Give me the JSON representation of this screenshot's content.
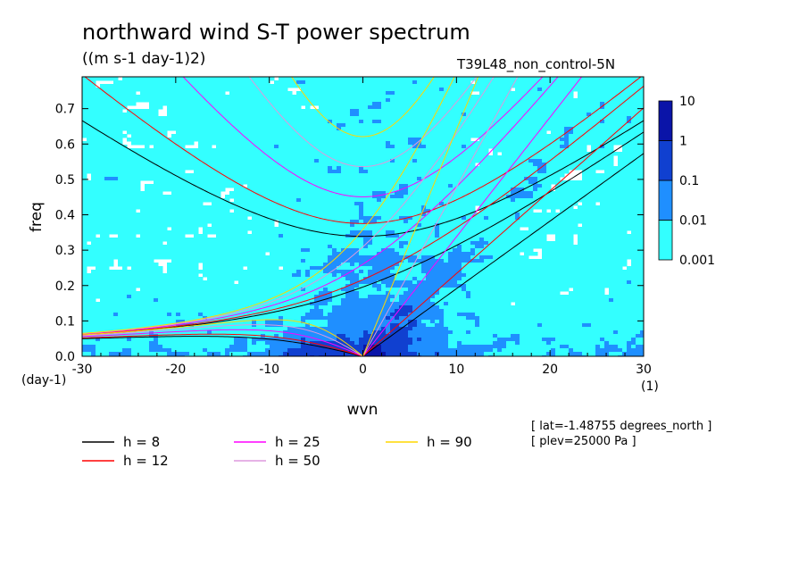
{
  "chart_data": {
    "type": "heatmap",
    "title": "northward wind S-T power spectrum",
    "units": "((m s-1 day-1)2)",
    "dataset": "T39L48_non_control-5N",
    "xlabel": "wvn",
    "ylabel": "freq",
    "x_unit": "(1)",
    "y_unit": "(day-1)",
    "xlim": [
      -30,
      30
    ],
    "ylim": [
      0,
      0.79
    ],
    "x_ticks": [
      -30,
      -20,
      -10,
      0,
      10,
      20,
      30
    ],
    "x_tick_labels": [
      "-30",
      "-20",
      "-10",
      "0",
      "10",
      "20",
      "30"
    ],
    "y_ticks": [
      0.0,
      0.1,
      0.2,
      0.3,
      0.4,
      0.5,
      0.6,
      0.7
    ],
    "y_tick_labels": [
      "0.0",
      "0.1",
      "0.2",
      "0.3",
      "0.4",
      "0.5",
      "0.6",
      "0.7"
    ],
    "colorbar": {
      "levels": [
        0.001,
        0.01,
        0.1,
        1,
        10
      ],
      "labels": [
        "0.001",
        "0.01",
        "0.1",
        "1",
        "10"
      ],
      "colors": [
        "#33ffff",
        "#1f8fff",
        "#1040d0",
        "#0a14a8",
        "#4a0fb5"
      ]
    },
    "dispersion_curves": [
      {
        "name": "h =  8",
        "h": 8,
        "color": "#000000"
      },
      {
        "name": "h = 12",
        "h": 12,
        "color": "#ff0000"
      },
      {
        "name": "h = 25",
        "h": 25,
        "color": "#ff00ff"
      },
      {
        "name": "h = 50",
        "h": 50,
        "color": "#dd99dd"
      },
      {
        "name": "h = 90",
        "h": 90,
        "color": "#ffd700"
      }
    ],
    "annotations": [
      "[ lat=-1.48755 degrees_north ]",
      "[ plev=25000 Pa ]"
    ]
  }
}
